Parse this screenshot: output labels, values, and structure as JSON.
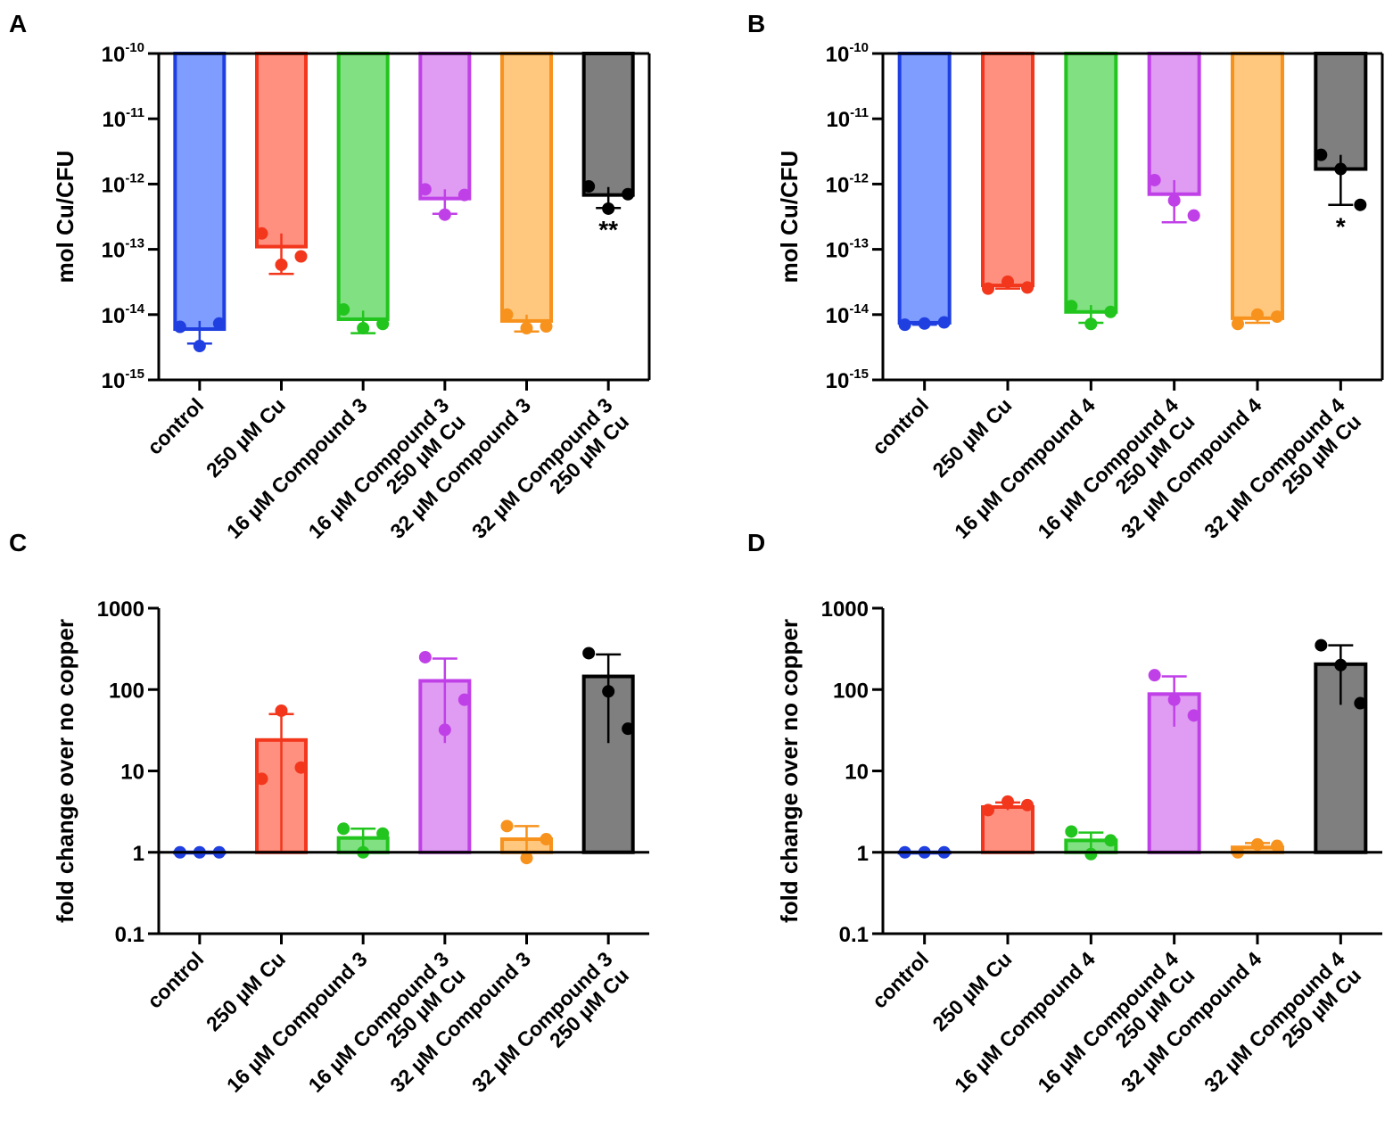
{
  "chart_data": [
    {
      "panel": "A",
      "type": "bar",
      "scale": "log",
      "ylabel": "mol Cu/CFU",
      "ylim": [
        1e-15,
        1e-10
      ],
      "yticks": [
        {
          "base": "10",
          "exp": "-15",
          "value": 1e-15
        },
        {
          "base": "10",
          "exp": "-14",
          "value": 1e-14
        },
        {
          "base": "10",
          "exp": "-13",
          "value": 1e-13
        },
        {
          "base": "10",
          "exp": "-12",
          "value": 1e-12
        },
        {
          "base": "10",
          "exp": "-11",
          "value": 1e-11
        },
        {
          "base": "10",
          "exp": "-10",
          "value": 1e-10
        }
      ],
      "bar_origin": 1e-10,
      "reference_line": null,
      "categories": [
        [
          "control"
        ],
        [
          "250 µM Cu"
        ],
        [
          "16 µM Compound 3"
        ],
        [
          "16 µM Compound 3",
          "250 µM Cu"
        ],
        [
          "32 µM Compound 3"
        ],
        [
          "32 µM Compound 3",
          "250 µM Cu"
        ]
      ],
      "series": [
        {
          "name": "control",
          "stroke": "#1f3fe0",
          "fill": "#7f9cff",
          "mean": 6e-15,
          "err_low": 3.6e-15,
          "err_high": 8e-15,
          "points": [
            6.5e-15,
            3.3e-15,
            7.3e-15
          ],
          "sig": ""
        },
        {
          "name": "250 µM Cu",
          "stroke": "#f2371d",
          "fill": "#ff9080",
          "mean": 1.1e-13,
          "err_low": 4.2e-14,
          "err_high": 1.75e-13,
          "points": [
            1.75e-13,
            5.8e-14,
            7.8e-14
          ],
          "sig": ""
        },
        {
          "name": "16 µM Compound 3",
          "stroke": "#22c51e",
          "fill": "#80e082",
          "mean": 8.5e-15,
          "err_low": 5.2e-15,
          "err_high": 1.15e-14,
          "points": [
            1.2e-14,
            6.2e-15,
            7.2e-15
          ],
          "sig": ""
        },
        {
          "name": "16 µM Compound 3 250 µM Cu",
          "stroke": "#c040e8",
          "fill": "#e09cf2",
          "mean": 6e-13,
          "err_low": 3.5e-13,
          "err_high": 8.3e-13,
          "points": [
            8.3e-13,
            3.4e-13,
            6.8e-13
          ],
          "sig": ""
        },
        {
          "name": "32 µM Compound 3",
          "stroke": "#f7921d",
          "fill": "#ffc87e",
          "mean": 8e-15,
          "err_low": 5.5e-15,
          "err_high": 1e-14,
          "points": [
            1e-14,
            6.2e-15,
            6.6e-15
          ],
          "sig": ""
        },
        {
          "name": "32 µM Compound 3 250 µM Cu",
          "stroke": "#000000",
          "fill": "#7f7f7f",
          "mean": 6.8e-13,
          "err_low": 4.3e-13,
          "err_high": 9e-13,
          "points": [
            9.2e-13,
            4.2e-13,
            7e-13
          ],
          "sig": "**"
        }
      ]
    },
    {
      "panel": "B",
      "type": "bar",
      "scale": "log",
      "ylabel": "mol Cu/CFU",
      "ylim": [
        1e-15,
        1e-10
      ],
      "yticks": [
        {
          "base": "10",
          "exp": "-15",
          "value": 1e-15
        },
        {
          "base": "10",
          "exp": "-14",
          "value": 1e-14
        },
        {
          "base": "10",
          "exp": "-13",
          "value": 1e-13
        },
        {
          "base": "10",
          "exp": "-12",
          "value": 1e-12
        },
        {
          "base": "10",
          "exp": "-11",
          "value": 1e-11
        },
        {
          "base": "10",
          "exp": "-10",
          "value": 1e-10
        }
      ],
      "bar_origin": 1e-10,
      "reference_line": null,
      "categories": [
        [
          "control"
        ],
        [
          "250 µM Cu"
        ],
        [
          "16 µM Compound 4"
        ],
        [
          "16 µM Compound 4",
          "250 µM Cu"
        ],
        [
          "32 µM Compound 4"
        ],
        [
          "32 µM Compound 4",
          "250 µM Cu"
        ]
      ],
      "series": [
        {
          "name": "control",
          "stroke": "#1f3fe0",
          "fill": "#7f9cff",
          "mean": 7.5e-15,
          "err_low": 7e-15,
          "err_high": 8e-15,
          "points": [
            7e-15,
            7.3e-15,
            7.6e-15
          ],
          "sig": ""
        },
        {
          "name": "250 µM Cu",
          "stroke": "#f2371d",
          "fill": "#ff9080",
          "mean": 2.8e-14,
          "err_low": 2.5e-14,
          "err_high": 3.1e-14,
          "points": [
            2.5e-14,
            3.2e-14,
            2.6e-14
          ],
          "sig": ""
        },
        {
          "name": "16 µM Compound 4",
          "stroke": "#22c51e",
          "fill": "#80e082",
          "mean": 1.1e-14,
          "err_low": 7.5e-15,
          "err_high": 1.4e-14,
          "points": [
            1.35e-14,
            7.2e-15,
            1.1e-14
          ],
          "sig": ""
        },
        {
          "name": "16 µM Compound 4 250 µM Cu",
          "stroke": "#c040e8",
          "fill": "#e09cf2",
          "mean": 7e-13,
          "err_low": 2.6e-13,
          "err_high": 1.15e-12,
          "points": [
            1.15e-12,
            5.6e-13,
            3.3e-13
          ],
          "sig": ""
        },
        {
          "name": "32 µM Compound 4",
          "stroke": "#f7921d",
          "fill": "#ffc87e",
          "mean": 8.8e-15,
          "err_low": 7.5e-15,
          "err_high": 1e-14,
          "points": [
            7.2e-15,
            1e-14,
            9.3e-15
          ],
          "sig": ""
        },
        {
          "name": "32 µM Compound 4 250 µM Cu",
          "stroke": "#000000",
          "fill": "#7f7f7f",
          "mean": 1.7e-12,
          "err_low": 4.8e-13,
          "err_high": 2.8e-12,
          "points": [
            2.8e-12,
            1.7e-12,
            4.8e-13
          ],
          "sig": "*"
        }
      ]
    },
    {
      "panel": "C",
      "type": "bar",
      "scale": "log",
      "ylabel": "fold change over no copper",
      "ylim": [
        0.1,
        1000
      ],
      "yticks": [
        {
          "base": "0.1",
          "exp": "",
          "value": 0.1
        },
        {
          "base": "1",
          "exp": "",
          "value": 1
        },
        {
          "base": "10",
          "exp": "",
          "value": 10
        },
        {
          "base": "100",
          "exp": "",
          "value": 100
        },
        {
          "base": "1000",
          "exp": "",
          "value": 1000
        }
      ],
      "bar_origin": 1,
      "reference_line": 1,
      "categories": [
        [
          "control"
        ],
        [
          "250 µM Cu"
        ],
        [
          "16 µM Compound 3"
        ],
        [
          "16 µM Compound 3",
          "250 µM Cu"
        ],
        [
          "32 µM Compound 3"
        ],
        [
          "32 µM Compound 3",
          "250 µM Cu"
        ]
      ],
      "series": [
        {
          "name": "control",
          "stroke": "#1f3fe0",
          "fill": "#7f9cff",
          "mean": 1,
          "err_low": 1,
          "err_high": 1,
          "points": [
            1,
            1,
            1
          ],
          "sig": ""
        },
        {
          "name": "250 µM Cu",
          "stroke": "#f2371d",
          "fill": "#ff9080",
          "mean": 24,
          "err_low": 1,
          "err_high": 50,
          "points": [
            8,
            55,
            11
          ],
          "sig": ""
        },
        {
          "name": "16 µM Compound 3",
          "stroke": "#22c51e",
          "fill": "#80e082",
          "mean": 1.5,
          "err_low": 1.1,
          "err_high": 1.95,
          "points": [
            1.95,
            1,
            1.7
          ],
          "sig": ""
        },
        {
          "name": "16 µM Compound 3 250 µM Cu",
          "stroke": "#c040e8",
          "fill": "#e09cf2",
          "mean": 128,
          "err_low": 22,
          "err_high": 240,
          "points": [
            250,
            32,
            75
          ],
          "sig": ""
        },
        {
          "name": "32 µM Compound 3",
          "stroke": "#f7921d",
          "fill": "#ffc87e",
          "mean": 1.45,
          "err_low": 0.85,
          "err_high": 2.1,
          "points": [
            2.1,
            0.85,
            1.45
          ],
          "sig": ""
        },
        {
          "name": "32 µM Compound 3 250 µM Cu",
          "stroke": "#000000",
          "fill": "#7f7f7f",
          "mean": 145,
          "err_low": 22,
          "err_high": 270,
          "points": [
            280,
            95,
            33
          ],
          "sig": ""
        }
      ]
    },
    {
      "panel": "D",
      "type": "bar",
      "scale": "log",
      "ylabel": "fold change over no copper",
      "ylim": [
        0.1,
        1000
      ],
      "yticks": [
        {
          "base": "0.1",
          "exp": "",
          "value": 0.1
        },
        {
          "base": "1",
          "exp": "",
          "value": 1
        },
        {
          "base": "10",
          "exp": "",
          "value": 10
        },
        {
          "base": "100",
          "exp": "",
          "value": 100
        },
        {
          "base": "1000",
          "exp": "",
          "value": 1000
        }
      ],
      "bar_origin": 1,
      "reference_line": 1,
      "categories": [
        [
          "control"
        ],
        [
          "250 µM Cu"
        ],
        [
          "16 µM Compound 4"
        ],
        [
          "16 µM Compound 4",
          "250 µM Cu"
        ],
        [
          "32 µM Compound 4"
        ],
        [
          "32 µM Compound 4",
          "250 µM Cu"
        ]
      ],
      "series": [
        {
          "name": "control",
          "stroke": "#1f3fe0",
          "fill": "#7f9cff",
          "mean": 1,
          "err_low": 1,
          "err_high": 1,
          "points": [
            1,
            1,
            1
          ],
          "sig": ""
        },
        {
          "name": "250 µM Cu",
          "stroke": "#f2371d",
          "fill": "#ff9080",
          "mean": 3.6,
          "err_low": 3.3,
          "err_high": 4.1,
          "points": [
            3.3,
            4.2,
            3.8
          ],
          "sig": ""
        },
        {
          "name": "16 µM Compound 4",
          "stroke": "#22c51e",
          "fill": "#80e082",
          "mean": 1.4,
          "err_low": 1,
          "err_high": 1.75,
          "points": [
            1.8,
            0.95,
            1.4
          ],
          "sig": ""
        },
        {
          "name": "16 µM Compound 4 250 µM Cu",
          "stroke": "#c040e8",
          "fill": "#e09cf2",
          "mean": 88,
          "err_low": 35,
          "err_high": 145,
          "points": [
            150,
            75,
            48
          ],
          "sig": ""
        },
        {
          "name": "32 µM Compound 4",
          "stroke": "#f7921d",
          "fill": "#ffc87e",
          "mean": 1.15,
          "err_low": 1,
          "err_high": 1.3,
          "points": [
            1,
            1.25,
            1.2
          ],
          "sig": ""
        },
        {
          "name": "32 µM Compound 4 250 µM Cu",
          "stroke": "#000000",
          "fill": "#7f7f7f",
          "mean": 205,
          "err_low": 65,
          "err_high": 350,
          "points": [
            350,
            200,
            68
          ],
          "sig": ""
        }
      ]
    }
  ]
}
